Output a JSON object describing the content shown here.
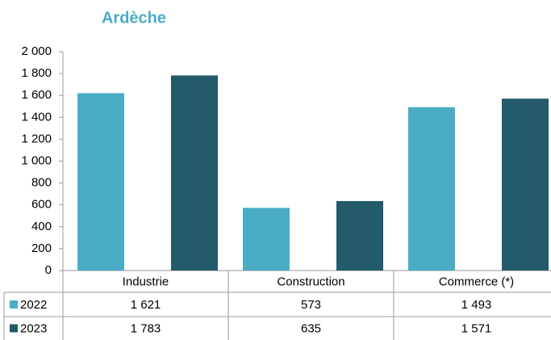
{
  "chart_data": {
    "type": "bar",
    "title": "Ardèche",
    "categories": [
      "Industrie",
      "Construction",
      "Commerce (*)"
    ],
    "series": [
      {
        "name": "2022",
        "color": "#4bacc6",
        "values": [
          1621,
          573,
          1493
        ],
        "value_labels": [
          "1 621",
          "573",
          "1 493"
        ]
      },
      {
        "name": "2023",
        "color": "#235b6a",
        "values": [
          1783,
          635,
          1571
        ],
        "value_labels": [
          "1 783",
          "635",
          "1 571"
        ]
      }
    ],
    "ylim": [
      0,
      2000
    ],
    "yticks": [
      0,
      200,
      400,
      600,
      800,
      {
        "value": 1000,
        "label": "1 000"
      },
      {
        "value": 1200,
        "label": "1 200"
      },
      {
        "value": 1400,
        "label": "1 400"
      },
      {
        "value": 1600,
        "label": "1 600"
      },
      {
        "value": 1800,
        "label": "1 800"
      },
      {
        "value": 2000,
        "label": "2 000"
      }
    ],
    "grid": false,
    "data_table": true
  }
}
